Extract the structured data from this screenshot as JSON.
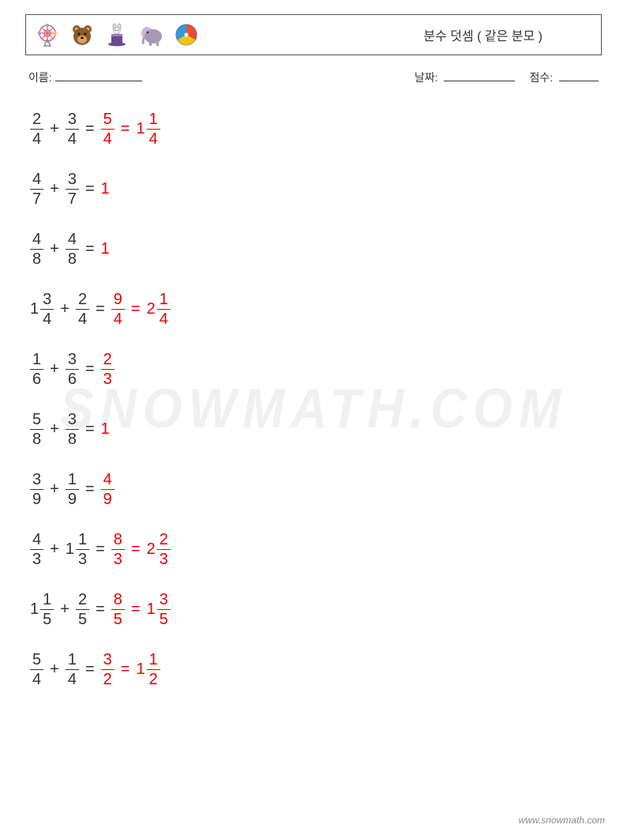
{
  "header": {
    "title": "분수 덧셈 ( 같은 분모 )",
    "icons": [
      {
        "name": "ferris-wheel-icon"
      },
      {
        "name": "bear-icon"
      },
      {
        "name": "magic-hat-icon"
      },
      {
        "name": "elephant-icon"
      },
      {
        "name": "beach-ball-icon"
      }
    ]
  },
  "meta": {
    "name_label": "이름:",
    "date_label": "날짜:",
    "score_label": "점수:",
    "name_blank_width": 110,
    "date_blank_width": 90,
    "score_blank_width": 50
  },
  "colors": {
    "text": "#333333",
    "answer": "#e60000",
    "border": "#555555",
    "watermark": "rgba(0,0,0,0.06)",
    "footer": "#888888",
    "background": "#ffffff"
  },
  "typography": {
    "title_fontsize": 16,
    "meta_fontsize": 14,
    "problem_fontsize": 20,
    "watermark_fontsize": 64,
    "footer_fontsize": 12
  },
  "watermark_text": "SNOWMATH.COM",
  "footer_text": "www.snowmath.com",
  "problems": [
    {
      "a": {
        "whole": null,
        "num": 2,
        "den": 4
      },
      "b": {
        "whole": null,
        "num": 3,
        "den": 4
      },
      "answers": [
        {
          "whole": null,
          "num": 5,
          "den": 4
        },
        {
          "whole": 1,
          "num": 1,
          "den": 4
        }
      ]
    },
    {
      "a": {
        "whole": null,
        "num": 4,
        "den": 7
      },
      "b": {
        "whole": null,
        "num": 3,
        "den": 7
      },
      "answers": [
        {
          "plain": "1"
        }
      ]
    },
    {
      "a": {
        "whole": null,
        "num": 4,
        "den": 8
      },
      "b": {
        "whole": null,
        "num": 4,
        "den": 8
      },
      "answers": [
        {
          "plain": "1"
        }
      ]
    },
    {
      "a": {
        "whole": 1,
        "num": 3,
        "den": 4
      },
      "b": {
        "whole": null,
        "num": 2,
        "den": 4
      },
      "answers": [
        {
          "whole": null,
          "num": 9,
          "den": 4
        },
        {
          "whole": 2,
          "num": 1,
          "den": 4
        }
      ]
    },
    {
      "a": {
        "whole": null,
        "num": 1,
        "den": 6
      },
      "b": {
        "whole": null,
        "num": 3,
        "den": 6
      },
      "answers": [
        {
          "whole": null,
          "num": 2,
          "den": 3
        }
      ]
    },
    {
      "a": {
        "whole": null,
        "num": 5,
        "den": 8
      },
      "b": {
        "whole": null,
        "num": 3,
        "den": 8
      },
      "answers": [
        {
          "plain": "1"
        }
      ]
    },
    {
      "a": {
        "whole": null,
        "num": 3,
        "den": 9
      },
      "b": {
        "whole": null,
        "num": 1,
        "den": 9
      },
      "answers": [
        {
          "whole": null,
          "num": 4,
          "den": 9
        }
      ]
    },
    {
      "a": {
        "whole": null,
        "num": 4,
        "den": 3
      },
      "b": {
        "whole": 1,
        "num": 1,
        "den": 3
      },
      "answers": [
        {
          "whole": null,
          "num": 8,
          "den": 3
        },
        {
          "whole": 2,
          "num": 2,
          "den": 3
        }
      ]
    },
    {
      "a": {
        "whole": 1,
        "num": 1,
        "den": 5
      },
      "b": {
        "whole": null,
        "num": 2,
        "den": 5
      },
      "answers": [
        {
          "whole": null,
          "num": 8,
          "den": 5
        },
        {
          "whole": 1,
          "num": 3,
          "den": 5
        }
      ]
    },
    {
      "a": {
        "whole": null,
        "num": 5,
        "den": 4
      },
      "b": {
        "whole": null,
        "num": 1,
        "den": 4
      },
      "answers": [
        {
          "whole": null,
          "num": 3,
          "den": 2
        },
        {
          "whole": 1,
          "num": 1,
          "den": 2
        }
      ]
    }
  ]
}
